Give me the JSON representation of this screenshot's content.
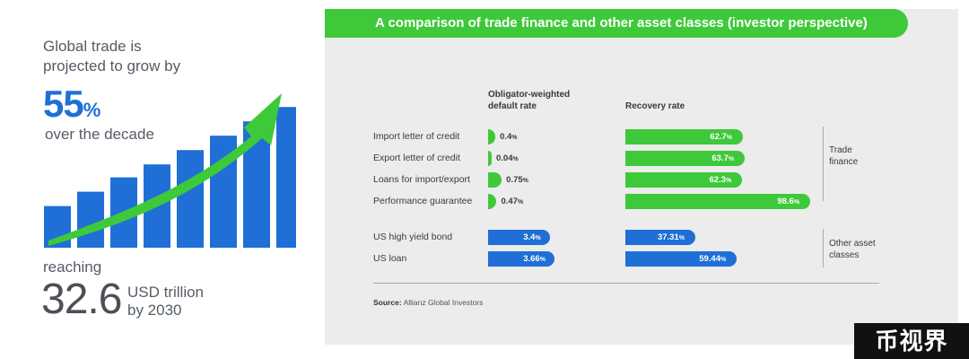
{
  "left": {
    "line1": "Global trade is",
    "line2": "projected to grow by",
    "growth_value": "55",
    "growth_symbol": "%",
    "line3": "over the decade",
    "reaching": "reaching",
    "amount": "32.6",
    "unit_line1": "USD trillion",
    "unit_line2": "by 2030",
    "growth_bars_relative": [
      0.29,
      0.39,
      0.49,
      0.58,
      0.68,
      0.78,
      0.88,
      0.98
    ],
    "bar_color": "#1f6fd6",
    "arrow_color": "#3ec93a"
  },
  "chart_data": {
    "type": "bar",
    "title": "A comparison of trade finance and other asset classes (investor perspective)",
    "columns": [
      "Obligator-weighted default rate",
      "Recovery rate"
    ],
    "col1_header": [
      "Obligator-weighted",
      "default rate"
    ],
    "col2_header": "Recovery rate",
    "groups": [
      {
        "label_lines": [
          "Trade",
          "finance"
        ],
        "color": "#3ec93a"
      },
      {
        "label_lines": [
          "Other asset",
          "classes"
        ],
        "color": "#1f6fd6"
      }
    ],
    "rows": [
      {
        "label": "Import letter of credit",
        "group": 0,
        "default_rate": 0.4,
        "default_label": "0.4",
        "recovery_rate": 62.7,
        "recovery_label": "62.7"
      },
      {
        "label": "Export letter of credit",
        "group": 0,
        "default_rate": 0.04,
        "default_label": "0.04",
        "recovery_rate": 63.7,
        "recovery_label": "63.7"
      },
      {
        "label": "Loans for import/export",
        "group": 0,
        "default_rate": 0.75,
        "default_label": "0.75",
        "recovery_rate": 62.3,
        "recovery_label": "62.3"
      },
      {
        "label": "Performance guarantee",
        "group": 0,
        "default_rate": 0.47,
        "default_label": "0.47",
        "recovery_rate": 98.6,
        "recovery_label": "98.6"
      },
      {
        "label": "US high yield bond",
        "group": 1,
        "default_rate": 3.4,
        "default_label": "3.4",
        "recovery_rate": 37.31,
        "recovery_label": "37.31"
      },
      {
        "label": "US loan",
        "group": 1,
        "default_rate": 3.66,
        "default_label": "3.66",
        "recovery_rate": 59.44,
        "recovery_label": "59.44"
      }
    ],
    "percent_symbol": "%",
    "source_label": "Source:",
    "source_text": "Allianz Global Investors",
    "colors": {
      "trade": "#3ec93a",
      "other": "#1f6fd6",
      "header": "#3ec93a",
      "panel": "#ececec"
    }
  },
  "watermark": "币视界"
}
